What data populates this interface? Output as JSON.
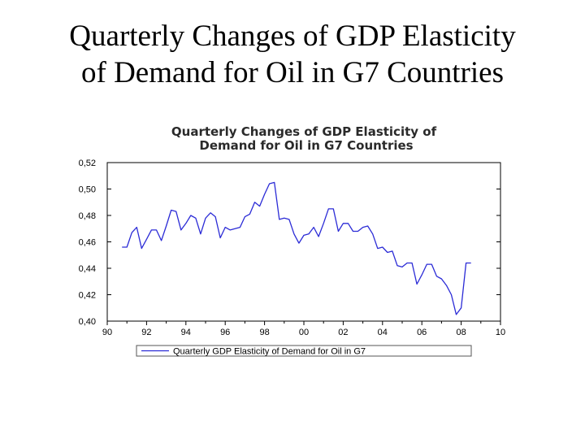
{
  "slide": {
    "title_line1": "Quarterly Changes of GDP Elasticity",
    "title_line2": "of Demand for Oil in G7 Countries"
  },
  "chart_data": {
    "type": "line",
    "title_line1": "Quarterly Changes of  GDP Elasticity of",
    "title_line2": "Demand for Oil in G7 Countries",
    "xlabel": "",
    "ylabel": "",
    "xlim": [
      1990,
      2010
    ],
    "ylim": [
      0.4,
      0.52
    ],
    "x_ticks": [
      1990,
      1992,
      1994,
      1996,
      1998,
      2000,
      2002,
      2004,
      2006,
      2008,
      2010
    ],
    "x_tick_labels": [
      "90",
      "92",
      "94",
      "96",
      "98",
      "00",
      "02",
      "04",
      "06",
      "08",
      "10"
    ],
    "y_ticks": [
      0.4,
      0.42,
      0.44,
      0.46,
      0.48,
      0.5,
      0.52
    ],
    "y_tick_labels": [
      "0,40",
      "0,42",
      "0,44",
      "0,46",
      "0,48",
      "0,50",
      "0,52"
    ],
    "grid": false,
    "legend_position": "bottom",
    "line_color": "#2b2bd6",
    "series": [
      {
        "name": "Quarterly GDP Elasticity of Demand for Oil in G7",
        "x": [
          1990.75,
          1991.0,
          1991.25,
          1991.5,
          1991.75,
          1992.0,
          1992.25,
          1992.5,
          1992.75,
          1993.0,
          1993.25,
          1993.5,
          1993.75,
          1994.0,
          1994.25,
          1994.5,
          1994.75,
          1995.0,
          1995.25,
          1995.5,
          1995.75,
          1996.0,
          1996.25,
          1996.5,
          1996.75,
          1997.0,
          1997.25,
          1997.5,
          1997.75,
          1998.0,
          1998.25,
          1998.5,
          1998.75,
          1999.0,
          1999.25,
          1999.5,
          1999.75,
          2000.0,
          2000.25,
          2000.5,
          2000.75,
          2001.0,
          2001.25,
          2001.5,
          2001.75,
          2002.0,
          2002.25,
          2002.5,
          2002.75,
          2003.0,
          2003.25,
          2003.5,
          2003.75,
          2004.0,
          2004.25,
          2004.5,
          2004.75,
          2005.0,
          2005.25,
          2005.5,
          2005.75,
          2006.0,
          2006.25,
          2006.5,
          2006.75,
          2007.0,
          2007.25,
          2007.5,
          2007.75,
          2008.0,
          2008.25,
          2008.5
        ],
        "values": [
          0.456,
          0.456,
          0.467,
          0.471,
          0.455,
          0.462,
          0.469,
          0.469,
          0.461,
          0.472,
          0.484,
          0.483,
          0.469,
          0.474,
          0.48,
          0.478,
          0.466,
          0.478,
          0.482,
          0.479,
          0.463,
          0.471,
          0.469,
          0.47,
          0.471,
          0.479,
          0.481,
          0.49,
          0.487,
          0.496,
          0.504,
          0.505,
          0.477,
          0.478,
          0.477,
          0.466,
          0.459,
          0.465,
          0.466,
          0.471,
          0.464,
          0.474,
          0.485,
          0.485,
          0.468,
          0.474,
          0.474,
          0.468,
          0.468,
          0.471,
          0.472,
          0.466,
          0.455,
          0.456,
          0.452,
          0.453,
          0.442,
          0.441,
          0.444,
          0.444,
          0.428,
          0.435,
          0.443,
          0.443,
          0.434,
          0.432,
          0.427,
          0.42,
          0.405,
          0.41,
          0.444,
          0.444
        ]
      }
    ]
  }
}
